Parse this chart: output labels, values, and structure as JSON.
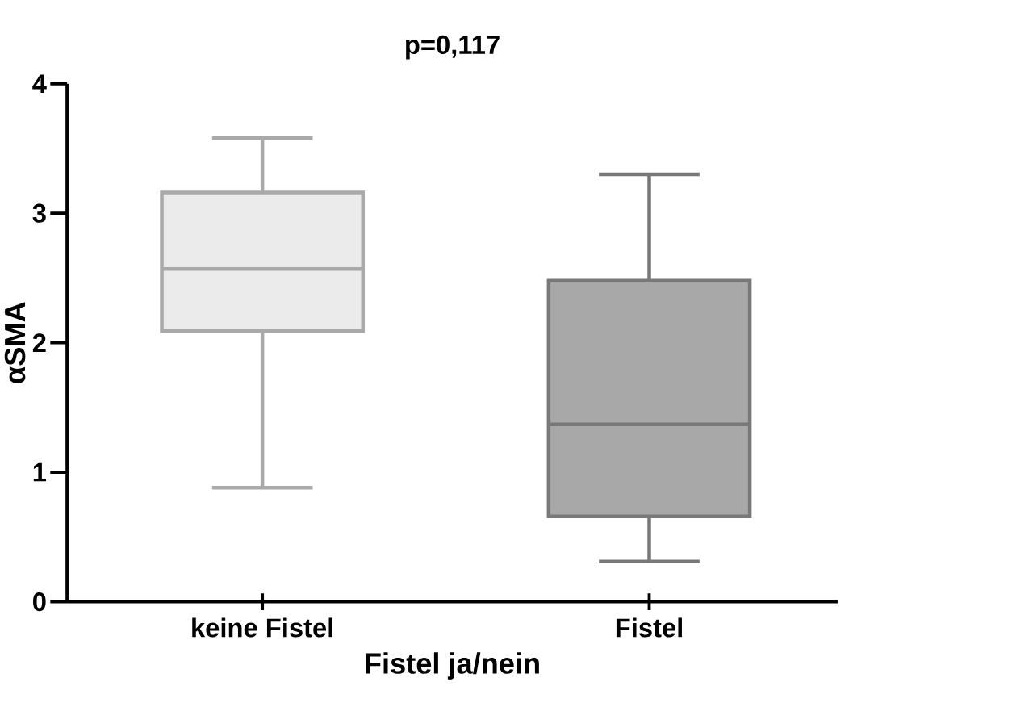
{
  "chart_data": {
    "type": "box",
    "title": "p=0,117",
    "xlabel": "Fistel ja/nein",
    "ylabel": "αSMA",
    "categories": [
      "keine Fistel",
      "Fistel"
    ],
    "boxes": [
      {
        "low": 0.88,
        "q1": 2.09,
        "median": 2.57,
        "q3": 3.16,
        "high": 3.58
      },
      {
        "low": 0.31,
        "q1": 0.66,
        "median": 1.37,
        "q3": 2.48,
        "high": 3.3
      }
    ],
    "colors": [
      "#ebebeb",
      "#a8a8a8"
    ],
    "ylim": [
      0,
      4
    ],
    "yticks": [
      0,
      1,
      2,
      3,
      4
    ]
  }
}
